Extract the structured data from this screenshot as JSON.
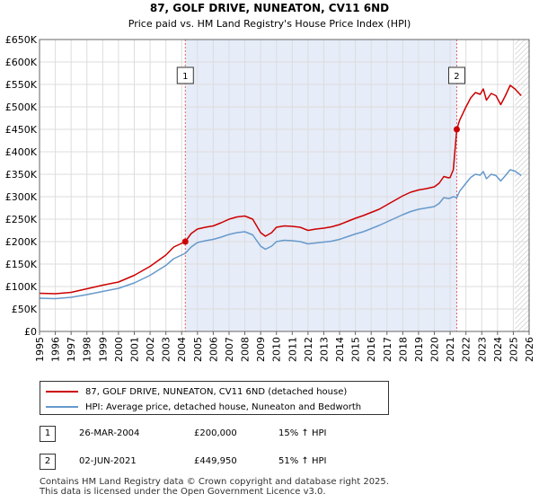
{
  "chart_data": {
    "type": "line",
    "title": "87, GOLF DRIVE, NUNEATON, CV11 6ND",
    "subtitle": "Price paid vs. HM Land Registry's House Price Index (HPI)",
    "xlim": [
      1995,
      2026
    ],
    "ylim": [
      0,
      650000
    ],
    "x_ticks": [
      1995,
      1996,
      1997,
      1998,
      1999,
      2000,
      2001,
      2002,
      2003,
      2004,
      2005,
      2006,
      2007,
      2008,
      2009,
      2010,
      2011,
      2012,
      2013,
      2014,
      2015,
      2016,
      2017,
      2018,
      2019,
      2020,
      2021,
      2022,
      2023,
      2024,
      2025,
      2026
    ],
    "y_ticks": [
      {
        "value": 0,
        "label": "£0"
      },
      {
        "value": 50000,
        "label": "£50K"
      },
      {
        "value": 100000,
        "label": "£100K"
      },
      {
        "value": 150000,
        "label": "£150K"
      },
      {
        "value": 200000,
        "label": "£200K"
      },
      {
        "value": 250000,
        "label": "£250K"
      },
      {
        "value": 300000,
        "label": "£300K"
      },
      {
        "value": 350000,
        "label": "£350K"
      },
      {
        "value": 400000,
        "label": "£400K"
      },
      {
        "value": 450000,
        "label": "£450K"
      },
      {
        "value": 500000,
        "label": "£500K"
      },
      {
        "value": 550000,
        "label": "£550K"
      },
      {
        "value": 600000,
        "label": "£600K"
      },
      {
        "value": 650000,
        "label": "£650K"
      }
    ],
    "grid": true,
    "series": [
      {
        "name": "87, GOLF DRIVE, NUNEATON, CV11 6ND (detached house)",
        "color": "#cc0000",
        "points": [
          [
            1995.0,
            85000
          ],
          [
            1996.0,
            84000
          ],
          [
            1997.0,
            87000
          ],
          [
            1998.0,
            95000
          ],
          [
            1999.0,
            103000
          ],
          [
            2000.0,
            110000
          ],
          [
            2001.0,
            125000
          ],
          [
            2002.0,
            145000
          ],
          [
            2003.0,
            170000
          ],
          [
            2003.5,
            188000
          ],
          [
            2004.23,
            200000
          ],
          [
            2004.6,
            218000
          ],
          [
            2005.0,
            228000
          ],
          [
            2005.5,
            232000
          ],
          [
            2006.0,
            235000
          ],
          [
            2006.5,
            242000
          ],
          [
            2007.0,
            250000
          ],
          [
            2007.5,
            255000
          ],
          [
            2008.0,
            257000
          ],
          [
            2008.5,
            250000
          ],
          [
            2009.0,
            220000
          ],
          [
            2009.3,
            212000
          ],
          [
            2009.7,
            220000
          ],
          [
            2010.0,
            232000
          ],
          [
            2010.5,
            235000
          ],
          [
            2011.0,
            234000
          ],
          [
            2011.5,
            232000
          ],
          [
            2012.0,
            225000
          ],
          [
            2012.5,
            228000
          ],
          [
            2013.0,
            230000
          ],
          [
            2013.5,
            233000
          ],
          [
            2014.0,
            238000
          ],
          [
            2014.5,
            245000
          ],
          [
            2015.0,
            252000
          ],
          [
            2015.5,
            258000
          ],
          [
            2016.0,
            265000
          ],
          [
            2016.5,
            272000
          ],
          [
            2017.0,
            282000
          ],
          [
            2017.5,
            292000
          ],
          [
            2018.0,
            302000
          ],
          [
            2018.5,
            310000
          ],
          [
            2019.0,
            315000
          ],
          [
            2019.5,
            318000
          ],
          [
            2020.0,
            322000
          ],
          [
            2020.3,
            330000
          ],
          [
            2020.6,
            345000
          ],
          [
            2020.9,
            342000
          ],
          [
            2021.0,
            343000
          ],
          [
            2021.2,
            360000
          ],
          [
            2021.42,
            449950
          ],
          [
            2021.6,
            470000
          ],
          [
            2022.0,
            500000
          ],
          [
            2022.3,
            520000
          ],
          [
            2022.6,
            532000
          ],
          [
            2022.9,
            528000
          ],
          [
            2023.1,
            540000
          ],
          [
            2023.3,
            515000
          ],
          [
            2023.6,
            530000
          ],
          [
            2023.9,
            525000
          ],
          [
            2024.2,
            505000
          ],
          [
            2024.5,
            525000
          ],
          [
            2024.8,
            548000
          ],
          [
            2025.1,
            540000
          ],
          [
            2025.5,
            525000
          ]
        ]
      },
      {
        "name": "HPI: Average price, detached house, Nuneaton and Bedworth",
        "color": "#6699cc",
        "points": [
          [
            1995.0,
            74000
          ],
          [
            1996.0,
            73000
          ],
          [
            1997.0,
            76000
          ],
          [
            1998.0,
            82000
          ],
          [
            1999.0,
            89000
          ],
          [
            2000.0,
            96000
          ],
          [
            2001.0,
            108000
          ],
          [
            2002.0,
            125000
          ],
          [
            2003.0,
            147000
          ],
          [
            2003.5,
            162000
          ],
          [
            2004.23,
            174000
          ],
          [
            2004.6,
            188000
          ],
          [
            2005.0,
            198000
          ],
          [
            2005.5,
            202000
          ],
          [
            2006.0,
            205000
          ],
          [
            2006.5,
            210000
          ],
          [
            2007.0,
            216000
          ],
          [
            2007.5,
            220000
          ],
          [
            2008.0,
            222000
          ],
          [
            2008.5,
            215000
          ],
          [
            2009.0,
            190000
          ],
          [
            2009.3,
            183000
          ],
          [
            2009.7,
            190000
          ],
          [
            2010.0,
            200000
          ],
          [
            2010.5,
            203000
          ],
          [
            2011.0,
            202000
          ],
          [
            2011.5,
            200000
          ],
          [
            2012.0,
            195000
          ],
          [
            2012.5,
            197000
          ],
          [
            2013.0,
            199000
          ],
          [
            2013.5,
            201000
          ],
          [
            2014.0,
            205000
          ],
          [
            2014.5,
            211000
          ],
          [
            2015.0,
            217000
          ],
          [
            2015.5,
            222000
          ],
          [
            2016.0,
            229000
          ],
          [
            2016.5,
            236000
          ],
          [
            2017.0,
            244000
          ],
          [
            2017.5,
            252000
          ],
          [
            2018.0,
            260000
          ],
          [
            2018.5,
            267000
          ],
          [
            2019.0,
            272000
          ],
          [
            2019.5,
            275000
          ],
          [
            2020.0,
            278000
          ],
          [
            2020.3,
            285000
          ],
          [
            2020.6,
            298000
          ],
          [
            2020.9,
            296000
          ],
          [
            2021.0,
            297000
          ],
          [
            2021.2,
            300000
          ],
          [
            2021.42,
            298000
          ],
          [
            2021.6,
            312000
          ],
          [
            2022.0,
            330000
          ],
          [
            2022.3,
            343000
          ],
          [
            2022.6,
            350000
          ],
          [
            2022.9,
            348000
          ],
          [
            2023.1,
            356000
          ],
          [
            2023.3,
            340000
          ],
          [
            2023.6,
            350000
          ],
          [
            2023.9,
            347000
          ],
          [
            2024.2,
            335000
          ],
          [
            2024.5,
            347000
          ],
          [
            2024.8,
            360000
          ],
          [
            2025.1,
            357000
          ],
          [
            2025.5,
            347000
          ]
        ]
      }
    ],
    "markers": [
      {
        "label": "1",
        "x": 2004.23,
        "y": 200000
      },
      {
        "label": "2",
        "x": 2021.42,
        "y": 449950
      }
    ],
    "shaded_region": {
      "from": 2004.23,
      "to": 2021.42
    },
    "forecast_hatch_from": 2025.1
  },
  "legend": {
    "items": [
      {
        "label": "87, GOLF DRIVE, NUNEATON, CV11 6ND (detached house)",
        "color": "#cc0000"
      },
      {
        "label": "HPI: Average price, detached house, Nuneaton and Bedworth",
        "color": "#6699cc"
      }
    ]
  },
  "transactions": [
    {
      "num": "1",
      "date": "26-MAR-2004",
      "price": "£200,000",
      "hpi": "15% ↑ HPI"
    },
    {
      "num": "2",
      "date": "02-JUN-2021",
      "price": "£449,950",
      "hpi": "51% ↑ HPI"
    }
  ],
  "footer": {
    "line1": "Contains HM Land Registry data © Crown copyright and database right 2025.",
    "line2": "This data is licensed under the Open Government Licence v3.0."
  }
}
